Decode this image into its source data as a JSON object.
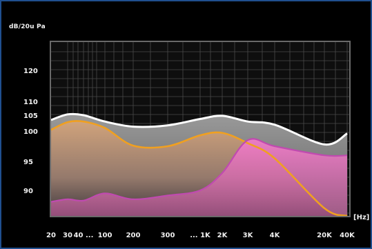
{
  "chart_data": {
    "type": "area",
    "ylabel": "dB/20u Pa",
    "xlabel": "[Hz]",
    "y_ticks": [
      "120",
      "110",
      "105",
      "100",
      "95",
      "90"
    ],
    "x_ticks": [
      "20",
      "30",
      "40 ...",
      "100",
      "200",
      "300",
      "... 1K",
      "2K",
      "3K",
      "4K",
      "20K",
      "40K"
    ],
    "grid": true,
    "colors": {
      "background": "#000000",
      "plot_border": "#6a6a6a",
      "grid": "#4a4a4a",
      "white_curve": "#ffffff",
      "gray_fill": "#8a8a8a",
      "orange_curve": "#f0a020",
      "orange_fill": "#c8a07a",
      "magenta_curve": "#c04ab0",
      "magenta_fill": "#e070c0"
    },
    "series": [
      {
        "color": "#ffffff",
        "x": [
          "20",
          "30",
          "40 ...",
          "100",
          "200",
          "300",
          "... 1K",
          "2K",
          "3K",
          "4K",
          "20K",
          "40K"
        ],
        "values": [
          103.5,
          105.3,
          105.0,
          103.0,
          101.4,
          101.8,
          103.8,
          104.8,
          103.0,
          102.0,
          97.8,
          99.6
        ]
      },
      {
        "color": "#f0a020",
        "x": [
          "20",
          "30",
          "40 ...",
          "100",
          "200",
          "300",
          "... 1K",
          "2K",
          "3K",
          "4K",
          "20K",
          "40K"
        ],
        "values": [
          100.4,
          102.8,
          103.0,
          101.0,
          97.6,
          97.5,
          99.3,
          99.7,
          98.0,
          95.5,
          83.0,
          80.0
        ]
      },
      {
        "color": "#c04ab0",
        "x": [
          "20",
          "30",
          "40 ...",
          "100",
          "200",
          "300",
          "... 1K",
          "2K",
          "3K",
          "4K",
          "20K",
          "40K"
        ],
        "values": [
          85.5,
          86.5,
          86.0,
          88.8,
          86.5,
          88.0,
          90.0,
          93.0,
          98.5,
          97.5,
          96.0,
          96.0
        ]
      }
    ]
  }
}
